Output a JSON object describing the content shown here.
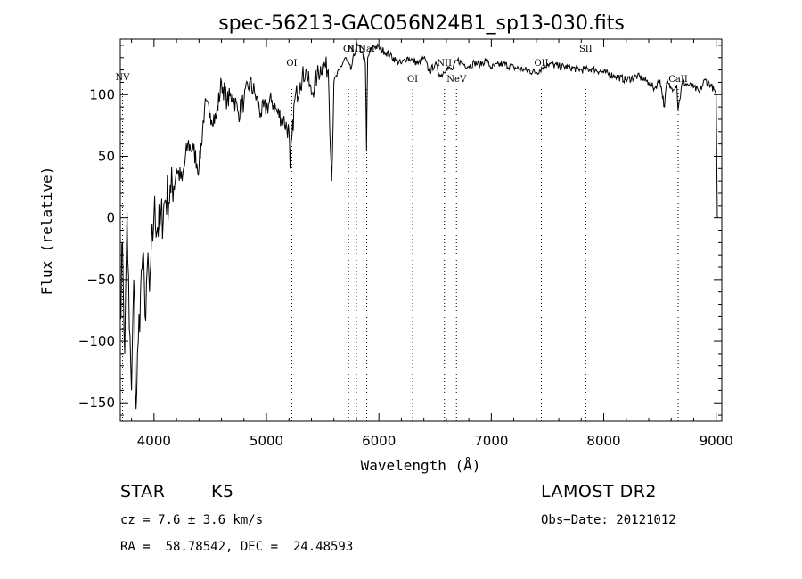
{
  "chart_data": {
    "type": "line",
    "title": "spec-56213-GAC056N24B1_sp13-030.fits",
    "xlabel": "Wavelength (Å)",
    "ylabel": "Flux (relative)",
    "xlim": [
      3700,
      9050
    ],
    "ylim": [
      -165,
      145
    ],
    "xticks": [
      4000,
      5000,
      6000,
      7000,
      8000,
      9000
    ],
    "yticks": [
      -150,
      -100,
      -50,
      0,
      50,
      100
    ],
    "xtick_labels": [
      "4000",
      "5000",
      "6000",
      "7000",
      "8000",
      "9000"
    ],
    "ytick_labels": [
      "−150",
      "−100",
      "−50",
      "0",
      "50",
      "100"
    ],
    "grid": false,
    "series": [
      {
        "x": [
          3700,
          3720,
          3740,
          3760,
          3780,
          3800,
          3820,
          3840,
          3860,
          3880,
          3900,
          3920,
          3940,
          3960,
          4000,
          4050,
          4100,
          4150,
          4200,
          4250,
          4300,
          4350,
          4400,
          4450,
          4500,
          4550,
          4600,
          4650,
          4700,
          4750,
          4800,
          4850,
          4900,
          4950,
          5000,
          5050,
          5100,
          5150,
          5200,
          5210,
          5250,
          5300,
          5350,
          5400,
          5450,
          5500,
          5550,
          5580,
          5600,
          5650,
          5700,
          5750,
          5800,
          5850,
          5880,
          5890,
          5900,
          5950,
          6000,
          6050,
          6100,
          6150,
          6200,
          6250,
          6300,
          6350,
          6400,
          6450,
          6500,
          6550,
          6600,
          6650,
          6700,
          6750,
          6800,
          6850,
          6900,
          6950,
          7000,
          7100,
          7200,
          7300,
          7400,
          7500,
          7600,
          7700,
          7800,
          7900,
          8000,
          8100,
          8200,
          8300,
          8400,
          8450,
          8500,
          8540,
          8560,
          8600,
          8650,
          8660,
          8700,
          8750,
          8800,
          8850,
          8900,
          8950,
          8980,
          9000,
          9010
        ],
        "y": [
          -80,
          -20,
          -110,
          5,
          -90,
          -140,
          -50,
          -155,
          -100,
          -60,
          -30,
          -80,
          -40,
          -60,
          5,
          -10,
          15,
          20,
          40,
          30,
          60,
          55,
          40,
          90,
          85,
          80,
          110,
          95,
          100,
          85,
          95,
          110,
          100,
          85,
          90,
          95,
          85,
          80,
          70,
          40,
          95,
          110,
          120,
          100,
          115,
          125,
          120,
          30,
          110,
          120,
          130,
          120,
          140,
          135,
          125,
          55,
          130,
          140,
          138,
          135,
          132,
          128,
          125,
          130,
          128,
          125,
          130,
          118,
          125,
          115,
          122,
          120,
          128,
          125,
          123,
          126,
          124,
          128,
          122,
          125,
          122,
          120,
          118,
          125,
          123,
          122,
          120,
          121,
          118,
          115,
          112,
          115,
          110,
          105,
          112,
          90,
          110,
          105,
          108,
          88,
          110,
          108,
          106,
          102,
          112,
          108,
          104,
          100,
          0
        ]
      }
    ],
    "lines": [
      {
        "label": "NV",
        "x": 3720
      },
      {
        "label": "OI",
        "x": 5225
      },
      {
        "label": "OI",
        "x": 5730
      },
      {
        "label": "NIII",
        "x": 5800
      },
      {
        "label": "NaI",
        "x": 5892
      },
      {
        "label": "OI",
        "x": 6300
      },
      {
        "label": "NII",
        "x": 6583
      },
      {
        "label": "NeV",
        "x": 6690
      },
      {
        "label": "OII",
        "x": 7445
      },
      {
        "label": "SII",
        "x": 7840
      },
      {
        "label": "CaII",
        "x": 8662
      }
    ]
  },
  "info": {
    "class": "STAR",
    "subclass": "K5",
    "survey": "LAMOST DR2",
    "cz": "cz = 7.6 ± 3.6 km/s",
    "obs_date": "Obs−Date: 20121012",
    "radec": "RA =  58.78542, DEC =  24.48593"
  }
}
